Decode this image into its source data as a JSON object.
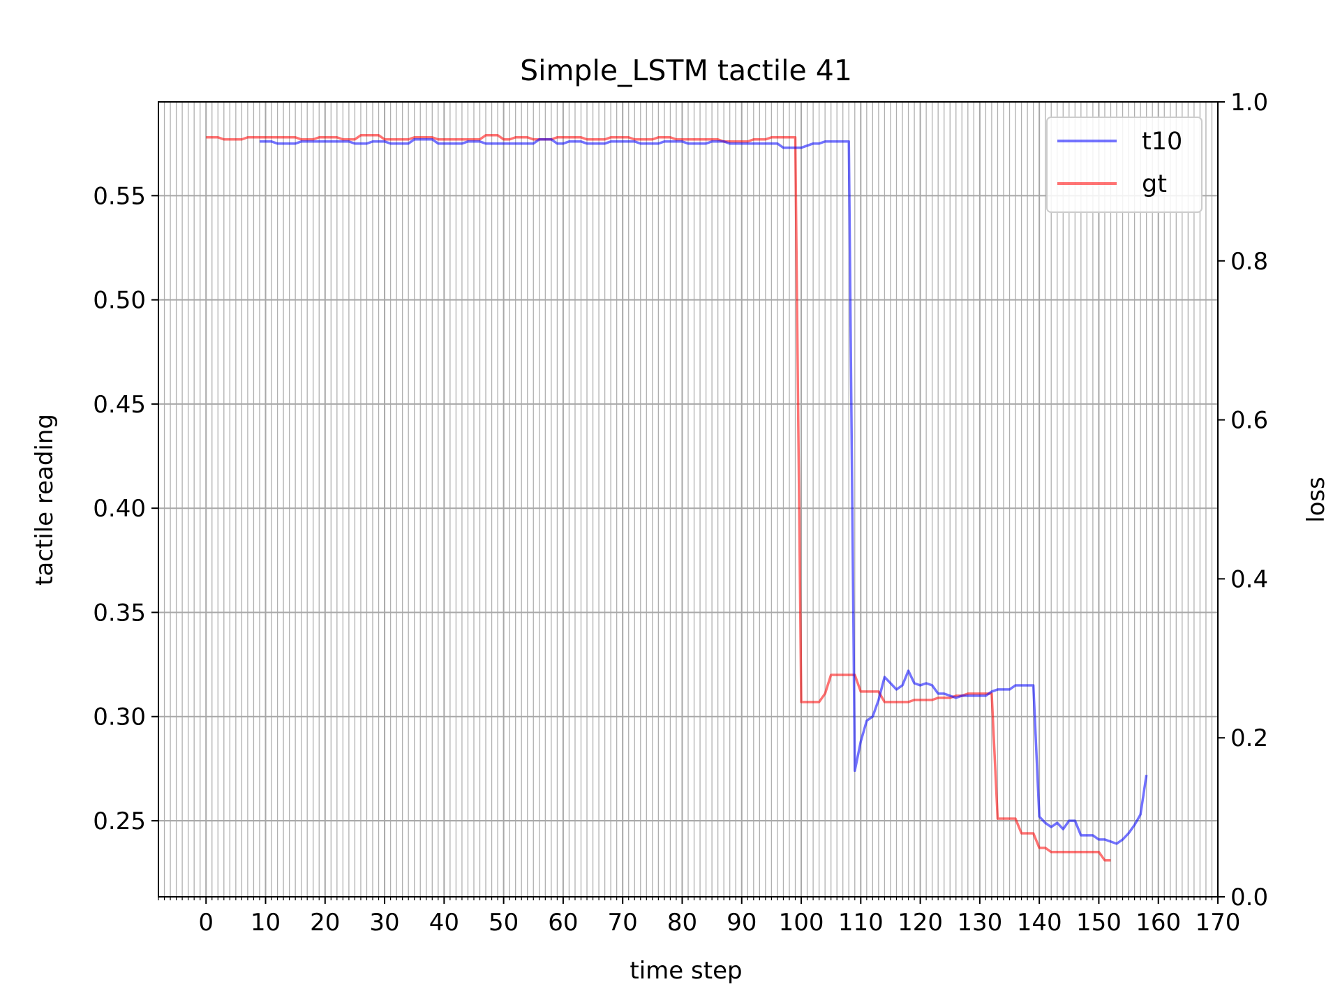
{
  "chart_data": {
    "type": "line",
    "title": "Simple_LSTM tactile 41",
    "xlabel": "time step",
    "ylabel": "tactile reading",
    "y2label": "loss",
    "xlim": [
      -8,
      170
    ],
    "ylim": [
      0.2135,
      0.595
    ],
    "y2lim": [
      0.0,
      1.0
    ],
    "xticks": [
      0,
      10,
      20,
      30,
      40,
      50,
      60,
      70,
      80,
      90,
      100,
      110,
      120,
      130,
      140,
      150,
      160,
      170
    ],
    "xtick_labels": [
      "0",
      "10",
      "20",
      "30",
      "40",
      "50",
      "60",
      "70",
      "80",
      "90",
      "100",
      "110",
      "120",
      "130",
      "140",
      "150",
      "160",
      "170"
    ],
    "yticks": [
      0.25,
      0.3,
      0.35,
      0.4,
      0.45,
      0.5,
      0.55
    ],
    "ytick_labels": [
      "0.25",
      "0.30",
      "0.35",
      "0.40",
      "0.45",
      "0.50",
      "0.55"
    ],
    "y2ticks": [
      0.0,
      0.2,
      0.4,
      0.6,
      0.8,
      1.0
    ],
    "y2tick_labels": [
      "0.0",
      "0.2",
      "0.4",
      "0.6",
      "0.8",
      "1.0"
    ],
    "grid": true,
    "minor_xgrid_step": 1,
    "legend_position": "top-right",
    "series": [
      {
        "name": "t10",
        "color": "#0000ff",
        "x_start": 9,
        "values": [
          0.576,
          0.576,
          0.576,
          0.575,
          0.575,
          0.575,
          0.575,
          0.576,
          0.576,
          0.576,
          0.576,
          0.576,
          0.576,
          0.576,
          0.576,
          0.576,
          0.575,
          0.575,
          0.575,
          0.576,
          0.576,
          0.576,
          0.575,
          0.575,
          0.575,
          0.575,
          0.577,
          0.577,
          0.577,
          0.577,
          0.575,
          0.575,
          0.575,
          0.575,
          0.575,
          0.576,
          0.576,
          0.576,
          0.575,
          0.575,
          0.575,
          0.575,
          0.575,
          0.575,
          0.575,
          0.575,
          0.575,
          0.577,
          0.577,
          0.577,
          0.575,
          0.575,
          0.576,
          0.576,
          0.576,
          0.575,
          0.575,
          0.575,
          0.575,
          0.576,
          0.576,
          0.576,
          0.576,
          0.576,
          0.575,
          0.575,
          0.575,
          0.575,
          0.576,
          0.576,
          0.576,
          0.576,
          0.575,
          0.575,
          0.575,
          0.575,
          0.576,
          0.576,
          0.576,
          0.575,
          0.575,
          0.575,
          0.575,
          0.575,
          0.575,
          0.575,
          0.575,
          0.575,
          0.573,
          0.573,
          0.573,
          0.573,
          0.574,
          0.575,
          0.575,
          0.576,
          0.576,
          0.576,
          0.576,
          0.576,
          0.274,
          0.288,
          0.298,
          0.3,
          0.308,
          0.319,
          0.316,
          0.313,
          0.315,
          0.322,
          0.316,
          0.315,
          0.316,
          0.315,
          0.311,
          0.311,
          0.31,
          0.309,
          0.31,
          0.31,
          0.31,
          0.31,
          0.31,
          0.312,
          0.313,
          0.313,
          0.313,
          0.315,
          0.315,
          0.315,
          0.315,
          0.252,
          0.249,
          0.247,
          0.249,
          0.246,
          0.25,
          0.25,
          0.243,
          0.243,
          0.243,
          0.241,
          0.241,
          0.24,
          0.239,
          0.241,
          0.244,
          0.248,
          0.253,
          0.272
        ]
      },
      {
        "name": "gt",
        "color": "#ff0000",
        "x_start": 0,
        "values": [
          0.578,
          0.578,
          0.578,
          0.577,
          0.577,
          0.577,
          0.577,
          0.578,
          0.578,
          0.578,
          0.578,
          0.578,
          0.578,
          0.578,
          0.578,
          0.578,
          0.577,
          0.577,
          0.577,
          0.578,
          0.578,
          0.578,
          0.578,
          0.577,
          0.577,
          0.577,
          0.579,
          0.579,
          0.579,
          0.579,
          0.577,
          0.577,
          0.577,
          0.577,
          0.577,
          0.578,
          0.578,
          0.578,
          0.578,
          0.577,
          0.577,
          0.577,
          0.577,
          0.577,
          0.577,
          0.577,
          0.577,
          0.579,
          0.579,
          0.579,
          0.577,
          0.577,
          0.578,
          0.578,
          0.578,
          0.577,
          0.577,
          0.577,
          0.577,
          0.578,
          0.578,
          0.578,
          0.578,
          0.578,
          0.577,
          0.577,
          0.577,
          0.577,
          0.578,
          0.578,
          0.578,
          0.578,
          0.577,
          0.577,
          0.577,
          0.577,
          0.578,
          0.578,
          0.578,
          0.577,
          0.577,
          0.577,
          0.577,
          0.577,
          0.577,
          0.577,
          0.577,
          0.576,
          0.576,
          0.576,
          0.576,
          0.576,
          0.577,
          0.577,
          0.577,
          0.578,
          0.578,
          0.578,
          0.578,
          0.578,
          0.307,
          0.307,
          0.307,
          0.307,
          0.311,
          0.32,
          0.32,
          0.32,
          0.32,
          0.32,
          0.312,
          0.312,
          0.312,
          0.312,
          0.307,
          0.307,
          0.307,
          0.307,
          0.307,
          0.308,
          0.308,
          0.308,
          0.308,
          0.309,
          0.309,
          0.309,
          0.31,
          0.31,
          0.311,
          0.311,
          0.311,
          0.311,
          0.311,
          0.251,
          0.251,
          0.251,
          0.251,
          0.244,
          0.244,
          0.244,
          0.237,
          0.237,
          0.235,
          0.235,
          0.235,
          0.235,
          0.235,
          0.235,
          0.235,
          0.235,
          0.235,
          0.231,
          0.231
        ]
      }
    ]
  }
}
